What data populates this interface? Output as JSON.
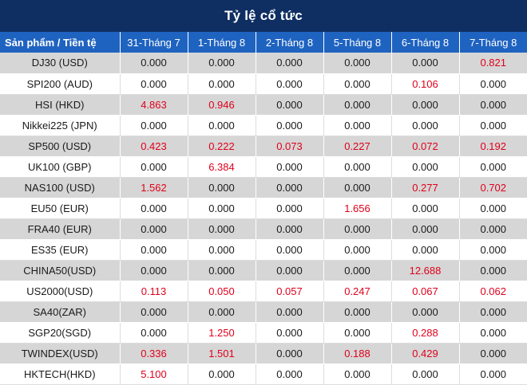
{
  "title": "Tỷ lệ cổ tức",
  "columns": [
    "Sản phẩm / Tiền tệ",
    "31-Tháng 7",
    "1-Tháng 8",
    "2-Tháng 8",
    "5-Tháng 8",
    "6-Tháng 8",
    "7-Tháng 8"
  ],
  "highlight_color": "#e0001b",
  "rows": [
    {
      "product": "DJ30 (USD)",
      "values": [
        "0.000",
        "0.000",
        "0.000",
        "0.000",
        "0.000",
        "0.821"
      ]
    },
    {
      "product": "SPI200 (AUD)",
      "values": [
        "0.000",
        "0.000",
        "0.000",
        "0.000",
        "0.106",
        "0.000"
      ]
    },
    {
      "product": "HSI (HKD)",
      "values": [
        "4.863",
        "0.946",
        "0.000",
        "0.000",
        "0.000",
        "0.000"
      ]
    },
    {
      "product": "Nikkei225 (JPN)",
      "values": [
        "0.000",
        "0.000",
        "0.000",
        "0.000",
        "0.000",
        "0.000"
      ]
    },
    {
      "product": "SP500 (USD)",
      "values": [
        "0.423",
        "0.222",
        "0.073",
        "0.227",
        "0.072",
        "0.192"
      ]
    },
    {
      "product": "UK100 (GBP)",
      "values": [
        "0.000",
        "6.384",
        "0.000",
        "0.000",
        "0.000",
        "0.000"
      ]
    },
    {
      "product": "NAS100 (USD)",
      "values": [
        "1.562",
        "0.000",
        "0.000",
        "0.000",
        "0.277",
        "0.702"
      ]
    },
    {
      "product": "EU50 (EUR)",
      "values": [
        "0.000",
        "0.000",
        "0.000",
        "1.656",
        "0.000",
        "0.000"
      ]
    },
    {
      "product": "FRA40 (EUR)",
      "values": [
        "0.000",
        "0.000",
        "0.000",
        "0.000",
        "0.000",
        "0.000"
      ]
    },
    {
      "product": "ES35 (EUR)",
      "values": [
        "0.000",
        "0.000",
        "0.000",
        "0.000",
        "0.000",
        "0.000"
      ]
    },
    {
      "product": "CHINA50(USD)",
      "values": [
        "0.000",
        "0.000",
        "0.000",
        "0.000",
        "12.688",
        "0.000"
      ]
    },
    {
      "product": "US2000(USD)",
      "values": [
        "0.113",
        "0.050",
        "0.057",
        "0.247",
        "0.067",
        "0.062"
      ]
    },
    {
      "product": "SA40(ZAR)",
      "values": [
        "0.000",
        "0.000",
        "0.000",
        "0.000",
        "0.000",
        "0.000"
      ]
    },
    {
      "product": "SGP20(SGD)",
      "values": [
        "0.000",
        "1.250",
        "0.000",
        "0.000",
        "0.288",
        "0.000"
      ]
    },
    {
      "product": "TWINDEX(USD)",
      "values": [
        "0.336",
        "1.501",
        "0.000",
        "0.188",
        "0.429",
        "0.000"
      ]
    },
    {
      "product": "HKTECH(HKD)",
      "values": [
        "5.100",
        "0.000",
        "0.000",
        "0.000",
        "0.000",
        "0.000"
      ]
    }
  ]
}
